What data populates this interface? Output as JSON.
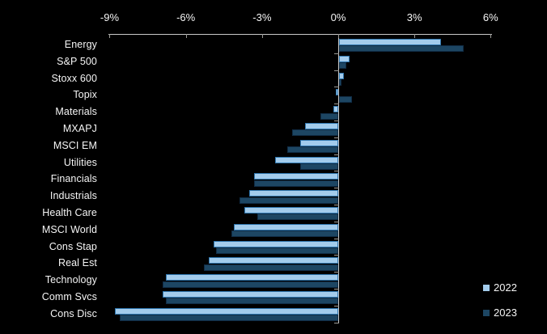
{
  "chart_data": {
    "type": "bar",
    "orientation": "horizontal",
    "title": "",
    "xlabel": "",
    "ylabel": "",
    "xlim": [
      -9,
      6
    ],
    "x_ticks": [
      "-9%",
      "-6%",
      "-3%",
      "0%",
      "3%",
      "6%"
    ],
    "x_tick_values": [
      -9,
      -6,
      -3,
      0,
      3,
      6
    ],
    "grid": false,
    "legend_position": "bottom-right",
    "background_color": "#000000",
    "axis_color": "#C8C8C8",
    "text_color": "#F5F5F5",
    "categories": [
      "Energy",
      "S&P 500",
      "Stoxx 600",
      "Topix",
      "Materials",
      "MXAPJ",
      "MSCI EM",
      "Utilities",
      "Financials",
      "Industrials",
      "Health Care",
      "MSCI World",
      "Cons Stap",
      "Real Est",
      "Technology",
      "Comm Svcs",
      "Cons Disc"
    ],
    "series": [
      {
        "name": "2022",
        "color": "#A3CCEC",
        "border_color": "#2F76AE",
        "values": [
          4.0,
          0.4,
          0.2,
          -0.1,
          -0.2,
          -1.3,
          -1.5,
          -2.5,
          -3.3,
          -3.5,
          -3.7,
          -4.1,
          -4.9,
          -5.1,
          -6.8,
          -6.9,
          -8.8
        ]
      },
      {
        "name": "2023",
        "color": "#1D4663",
        "border_color": "#102C45",
        "values": [
          4.9,
          0.3,
          0.1,
          0.5,
          -0.7,
          -1.8,
          -2.0,
          -1.5,
          -3.3,
          -3.9,
          -3.2,
          -4.2,
          -4.8,
          -5.3,
          -6.9,
          -6.8,
          -8.6
        ]
      }
    ]
  },
  "legend": {
    "items": [
      "2022",
      "2023"
    ]
  }
}
